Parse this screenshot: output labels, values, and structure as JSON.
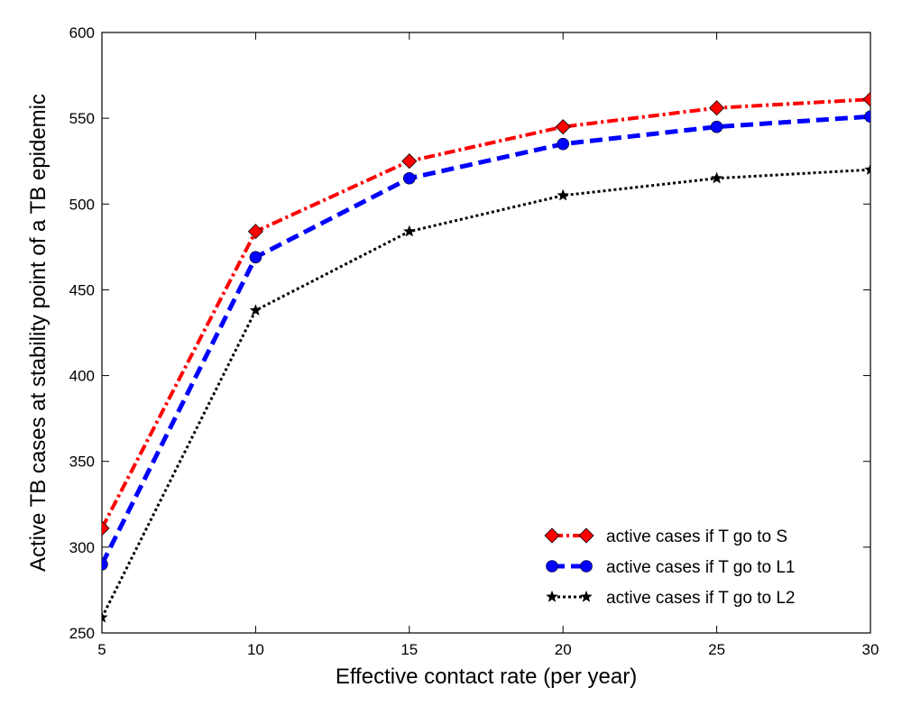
{
  "chart_data": {
    "type": "line",
    "xlabel": "Effective contact rate (per year)",
    "ylabel": "Active TB cases at stability point of a TB epidemic",
    "xlim": [
      5,
      30
    ],
    "ylim": [
      250,
      600
    ],
    "x_ticks": [
      5,
      10,
      15,
      20,
      25,
      30
    ],
    "y_ticks": [
      250,
      300,
      350,
      400,
      450,
      500,
      550,
      600
    ],
    "grid": false,
    "legend_position": "lower-right",
    "x": [
      5,
      10,
      15,
      20,
      25,
      30
    ],
    "series": [
      {
        "name": "active cases if T go to S",
        "values": [
          311,
          484,
          525,
          545,
          556,
          561
        ],
        "color": "#ff0000",
        "line_style": "dash-dot",
        "marker": "diamond"
      },
      {
        "name": "active cases if T go to L1",
        "values": [
          290,
          469,
          515,
          535,
          545,
          551
        ],
        "color": "#0000ff",
        "line_style": "dashed",
        "marker": "circle"
      },
      {
        "name": "active cases if T go to L2",
        "values": [
          259,
          438,
          484,
          505,
          515,
          520
        ],
        "color": "#000000",
        "line_style": "dotted",
        "marker": "star"
      }
    ]
  }
}
